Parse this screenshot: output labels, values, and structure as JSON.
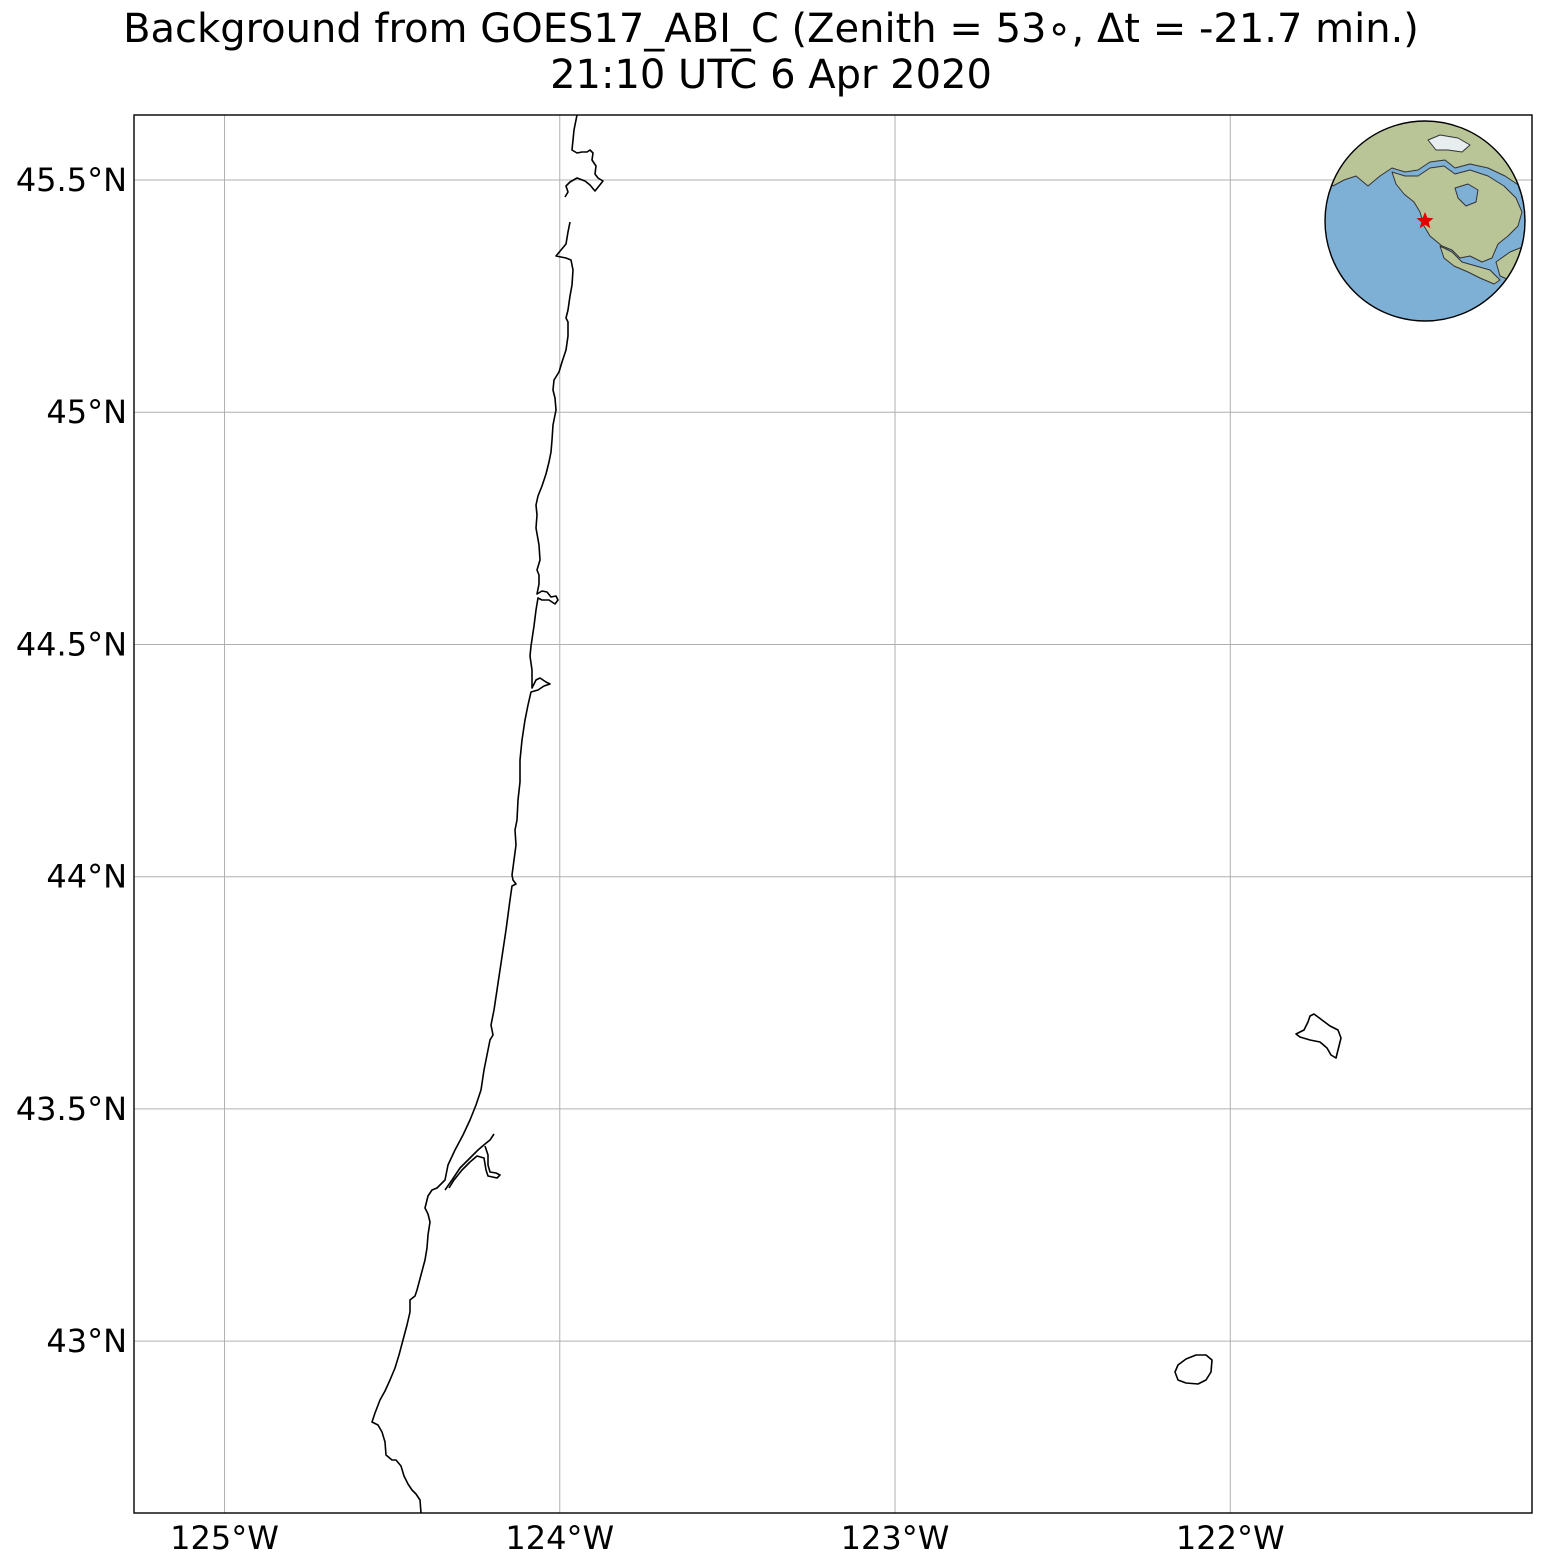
{
  "title": {
    "line1": "Background from GOES17_ABI_C (Zenith = 53$^\\circ$, Δt = -21.7 min.)",
    "line1_display": "Background from GOES17_ABI_C (Zenith = 53∘, Δt = -21.7 min.)",
    "line2": "21:10 UTC 6 Apr 2020"
  },
  "map": {
    "lon_range": [
      -125.27,
      -121.1
    ],
    "lat_range": [
      42.63,
      45.64
    ],
    "grid": true,
    "x_ticks": [
      {
        "value": -125,
        "label": "125°W"
      },
      {
        "value": -124,
        "label": "124°W"
      },
      {
        "value": -123,
        "label": "123°W"
      },
      {
        "value": -122,
        "label": "122°W"
      }
    ],
    "y_ticks": [
      {
        "value": 45.5,
        "label": "45.5°N"
      },
      {
        "value": 45.0,
        "label": "45°N"
      },
      {
        "value": 44.5,
        "label": "44.5°N"
      },
      {
        "value": 44.0,
        "label": "44°N"
      },
      {
        "value": 43.5,
        "label": "43.5°N"
      },
      {
        "value": 43.0,
        "label": "43°N"
      }
    ],
    "colors": {
      "gridline": "#b0b0b0",
      "coastline": "#000000",
      "ocean": "#7eafd4",
      "land": "#b9c497",
      "marker": "#e00000"
    },
    "inset": {
      "type": "globe",
      "marker": "red-star",
      "marker_location": "US west coast (Oregon)"
    }
  }
}
